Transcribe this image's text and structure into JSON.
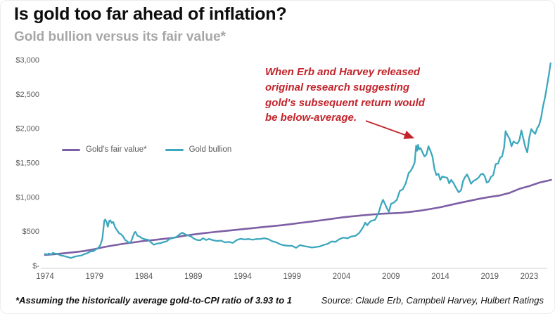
{
  "header": {
    "title": "Is gold too far ahead of inflation?",
    "subtitle": "Gold bullion versus its fair value*"
  },
  "annotation": {
    "lines": [
      "When Erb and Harvey released",
      "original research suggesting",
      "gold's subsequent return would",
      "be below-average."
    ],
    "color": "#c2242b",
    "arrow_points_to": "gold bullion 2011 peak"
  },
  "footer": {
    "note": "*Assuming the historically average gold-to-CPI ratio of 3.93 to 1",
    "source": "Source: Claude Erb, Campbell Harvey, Hulbert Ratings"
  },
  "colors": {
    "fair_value_line": "#7c5fa4",
    "bullion_line": "#3da7bd",
    "annotation_red": "#c2242b",
    "axis_text": "#595959",
    "baseline": "#d9d9d9",
    "title_text": "#0d0d0d",
    "subtitle_text": "#a6a6a6"
  },
  "chart_data": {
    "type": "line",
    "title": "Gold bullion versus its fair value*",
    "xlabel": "",
    "ylabel": "",
    "xlim": [
      1973.8,
      2025.6
    ],
    "ylim": [
      0,
      3000
    ],
    "grid": false,
    "legend_position": "inside-left",
    "y_ticks": [
      {
        "value": 0,
        "label": "$-"
      },
      {
        "value": 500,
        "label": "$500"
      },
      {
        "value": 1000,
        "label": "$1,000"
      },
      {
        "value": 1500,
        "label": "$1,500"
      },
      {
        "value": 2000,
        "label": "$2,000"
      },
      {
        "value": 2500,
        "label": "$2,500"
      },
      {
        "value": 3000,
        "label": "$3,000"
      }
    ],
    "x_ticks": [
      {
        "value": 1974,
        "label": "1974"
      },
      {
        "value": 1979,
        "label": "1979"
      },
      {
        "value": 1984,
        "label": "1984"
      },
      {
        "value": 1989,
        "label": "1989"
      },
      {
        "value": 1994,
        "label": "1994"
      },
      {
        "value": 1999,
        "label": "1999"
      },
      {
        "value": 2004,
        "label": "2004"
      },
      {
        "value": 2009,
        "label": "2009"
      },
      {
        "value": 2014,
        "label": "2014"
      },
      {
        "value": 2019,
        "label": "2019"
      },
      {
        "value": 2023,
        "label": "2023"
      }
    ],
    "series": [
      {
        "name": "Gold's fair value*",
        "color": "#7c5fa4",
        "width": 2.6,
        "points": [
          [
            1974,
            155
          ],
          [
            1975,
            166
          ],
          [
            1976,
            180
          ],
          [
            1977,
            196
          ],
          [
            1978,
            212
          ],
          [
            1979,
            238
          ],
          [
            1980,
            270
          ],
          [
            1981,
            296
          ],
          [
            1982,
            318
          ],
          [
            1983,
            338
          ],
          [
            1984,
            358
          ],
          [
            1985,
            372
          ],
          [
            1986,
            388
          ],
          [
            1987,
            404
          ],
          [
            1988,
            432
          ],
          [
            1989,
            452
          ],
          [
            1990,
            470
          ],
          [
            1991,
            486
          ],
          [
            1992,
            500
          ],
          [
            1993,
            515
          ],
          [
            1994,
            530
          ],
          [
            1995,
            545
          ],
          [
            1996,
            560
          ],
          [
            1997,
            574
          ],
          [
            1998,
            588
          ],
          [
            1999,
            606
          ],
          [
            2000,
            624
          ],
          [
            2001,
            642
          ],
          [
            2002,
            660
          ],
          [
            2003,
            680
          ],
          [
            2004,
            700
          ],
          [
            2005,
            715
          ],
          [
            2006,
            730
          ],
          [
            2007,
            742
          ],
          [
            2008,
            754
          ],
          [
            2009,
            760
          ],
          [
            2010,
            768
          ],
          [
            2011,
            782
          ],
          [
            2012,
            800
          ],
          [
            2013,
            824
          ],
          [
            2014,
            850
          ],
          [
            2015,
            882
          ],
          [
            2016,
            914
          ],
          [
            2017,
            944
          ],
          [
            2018,
            974
          ],
          [
            2019,
            1000
          ],
          [
            2020,
            1020
          ],
          [
            2021,
            1058
          ],
          [
            2022,
            1118
          ],
          [
            2023,
            1158
          ],
          [
            2024,
            1208
          ],
          [
            2025.2,
            1248
          ]
        ]
      },
      {
        "name": "Gold bullion",
        "color": "#3da7bd",
        "width": 2.3,
        "points": [
          [
            1974.0,
            170
          ],
          [
            1974.2,
            160
          ],
          [
            1974.4,
            176
          ],
          [
            1974.6,
            158
          ],
          [
            1974.8,
            184
          ],
          [
            1975.0,
            175
          ],
          [
            1975.3,
            166
          ],
          [
            1975.6,
            146
          ],
          [
            1975.9,
            140
          ],
          [
            1976.1,
            130
          ],
          [
            1976.4,
            121
          ],
          [
            1976.6,
            110
          ],
          [
            1976.9,
            124
          ],
          [
            1977.1,
            133
          ],
          [
            1977.4,
            140
          ],
          [
            1977.7,
            147
          ],
          [
            1978.0,
            168
          ],
          [
            1978.3,
            180
          ],
          [
            1978.6,
            206
          ],
          [
            1978.9,
            208
          ],
          [
            1979.1,
            230
          ],
          [
            1979.4,
            258
          ],
          [
            1979.6,
            300
          ],
          [
            1979.8,
            390
          ],
          [
            1980.0,
            655
          ],
          [
            1980.1,
            670
          ],
          [
            1980.25,
            625
          ],
          [
            1980.35,
            565
          ],
          [
            1980.5,
            650
          ],
          [
            1980.6,
            660
          ],
          [
            1980.75,
            620
          ],
          [
            1980.9,
            635
          ],
          [
            1981.1,
            555
          ],
          [
            1981.3,
            510
          ],
          [
            1981.5,
            470
          ],
          [
            1981.7,
            455
          ],
          [
            1981.9,
            425
          ],
          [
            1982.1,
            375
          ],
          [
            1982.3,
            355
          ],
          [
            1982.5,
            330
          ],
          [
            1982.7,
            345
          ],
          [
            1982.9,
            425
          ],
          [
            1983.05,
            480
          ],
          [
            1983.15,
            490
          ],
          [
            1983.35,
            435
          ],
          [
            1983.6,
            420
          ],
          [
            1983.85,
            395
          ],
          [
            1984.1,
            383
          ],
          [
            1984.4,
            378
          ],
          [
            1984.7,
            342
          ],
          [
            1985.0,
            303
          ],
          [
            1985.3,
            318
          ],
          [
            1985.7,
            328
          ],
          [
            1986.0,
            342
          ],
          [
            1986.3,
            352
          ],
          [
            1986.6,
            388
          ],
          [
            1987.0,
            402
          ],
          [
            1987.3,
            418
          ],
          [
            1987.6,
            452
          ],
          [
            1987.9,
            478
          ],
          [
            1988.2,
            452
          ],
          [
            1988.5,
            438
          ],
          [
            1988.8,
            422
          ],
          [
            1989.1,
            388
          ],
          [
            1989.4,
            372
          ],
          [
            1989.7,
            368
          ],
          [
            1990.0,
            398
          ],
          [
            1990.3,
            372
          ],
          [
            1990.6,
            388
          ],
          [
            1991.0,
            368
          ],
          [
            1991.4,
            358
          ],
          [
            1991.8,
            363
          ],
          [
            1992.2,
            338
          ],
          [
            1992.6,
            344
          ],
          [
            1993.0,
            330
          ],
          [
            1993.4,
            372
          ],
          [
            1993.8,
            390
          ],
          [
            1994.2,
            380
          ],
          [
            1994.6,
            387
          ],
          [
            1995.0,
            377
          ],
          [
            1995.4,
            386
          ],
          [
            1995.8,
            388
          ],
          [
            1996.2,
            398
          ],
          [
            1996.6,
            384
          ],
          [
            1997.0,
            353
          ],
          [
            1997.4,
            338
          ],
          [
            1997.8,
            308
          ],
          [
            1998.2,
            294
          ],
          [
            1998.6,
            289
          ],
          [
            1999.0,
            287
          ],
          [
            1999.4,
            258
          ],
          [
            1999.8,
            298
          ],
          [
            2000.2,
            284
          ],
          [
            2000.6,
            274
          ],
          [
            2001.0,
            262
          ],
          [
            2001.4,
            270
          ],
          [
            2001.8,
            278
          ],
          [
            2002.2,
            300
          ],
          [
            2002.6,
            316
          ],
          [
            2003.0,
            350
          ],
          [
            2003.4,
            346
          ],
          [
            2003.8,
            386
          ],
          [
            2004.2,
            406
          ],
          [
            2004.6,
            396
          ],
          [
            2005.0,
            424
          ],
          [
            2005.4,
            432
          ],
          [
            2005.8,
            476
          ],
          [
            2006.2,
            562
          ],
          [
            2006.4,
            624
          ],
          [
            2006.6,
            586
          ],
          [
            2006.8,
            624
          ],
          [
            2007.0,
            650
          ],
          [
            2007.4,
            666
          ],
          [
            2007.8,
            788
          ],
          [
            2008.0,
            888
          ],
          [
            2008.2,
            958
          ],
          [
            2008.4,
            898
          ],
          [
            2008.6,
            832
          ],
          [
            2008.8,
            782
          ],
          [
            2009.0,
            898
          ],
          [
            2009.3,
            918
          ],
          [
            2009.6,
            958
          ],
          [
            2009.9,
            1088
          ],
          [
            2010.2,
            1110
          ],
          [
            2010.5,
            1198
          ],
          [
            2010.8,
            1348
          ],
          [
            2011.0,
            1380
          ],
          [
            2011.2,
            1432
          ],
          [
            2011.4,
            1502
          ],
          [
            2011.55,
            1748
          ],
          [
            2011.65,
            1672
          ],
          [
            2011.75,
            1758
          ],
          [
            2011.85,
            1692
          ],
          [
            2012.0,
            1712
          ],
          [
            2012.2,
            1648
          ],
          [
            2012.4,
            1590
          ],
          [
            2012.6,
            1618
          ],
          [
            2012.8,
            1738
          ],
          [
            2013.0,
            1668
          ],
          [
            2013.2,
            1588
          ],
          [
            2013.4,
            1408
          ],
          [
            2013.6,
            1318
          ],
          [
            2013.8,
            1338
          ],
          [
            2014.0,
            1248
          ],
          [
            2014.2,
            1298
          ],
          [
            2014.45,
            1288
          ],
          [
            2014.7,
            1278
          ],
          [
            2014.9,
            1198
          ],
          [
            2015.1,
            1248
          ],
          [
            2015.35,
            1198
          ],
          [
            2015.6,
            1128
          ],
          [
            2015.85,
            1068
          ],
          [
            2016.1,
            1098
          ],
          [
            2016.3,
            1232
          ],
          [
            2016.5,
            1288
          ],
          [
            2016.7,
            1328
          ],
          [
            2016.9,
            1268
          ],
          [
            2017.1,
            1192
          ],
          [
            2017.35,
            1232
          ],
          [
            2017.6,
            1252
          ],
          [
            2017.85,
            1278
          ],
          [
            2018.1,
            1330
          ],
          [
            2018.3,
            1338
          ],
          [
            2018.5,
            1298
          ],
          [
            2018.7,
            1208
          ],
          [
            2018.9,
            1222
          ],
          [
            2019.1,
            1288
          ],
          [
            2019.35,
            1318
          ],
          [
            2019.6,
            1478
          ],
          [
            2019.85,
            1488
          ],
          [
            2020.05,
            1572
          ],
          [
            2020.25,
            1592
          ],
          [
            2020.45,
            1718
          ],
          [
            2020.6,
            1958
          ],
          [
            2020.8,
            1898
          ],
          [
            2021.0,
            1848
          ],
          [
            2021.2,
            1738
          ],
          [
            2021.4,
            1808
          ],
          [
            2021.6,
            1788
          ],
          [
            2021.8,
            1778
          ],
          [
            2022.0,
            1828
          ],
          [
            2022.2,
            1968
          ],
          [
            2022.4,
            1848
          ],
          [
            2022.6,
            1728
          ],
          [
            2022.8,
            1648
          ],
          [
            2023.0,
            1868
          ],
          [
            2023.2,
            1988
          ],
          [
            2023.4,
            1948
          ],
          [
            2023.6,
            1918
          ],
          [
            2023.8,
            2002
          ],
          [
            2024.0,
            2048
          ],
          [
            2024.2,
            2158
          ],
          [
            2024.4,
            2328
          ],
          [
            2024.6,
            2452
          ],
          [
            2024.8,
            2622
          ],
          [
            2025.0,
            2798
          ],
          [
            2025.15,
            2948
          ]
        ]
      }
    ]
  }
}
